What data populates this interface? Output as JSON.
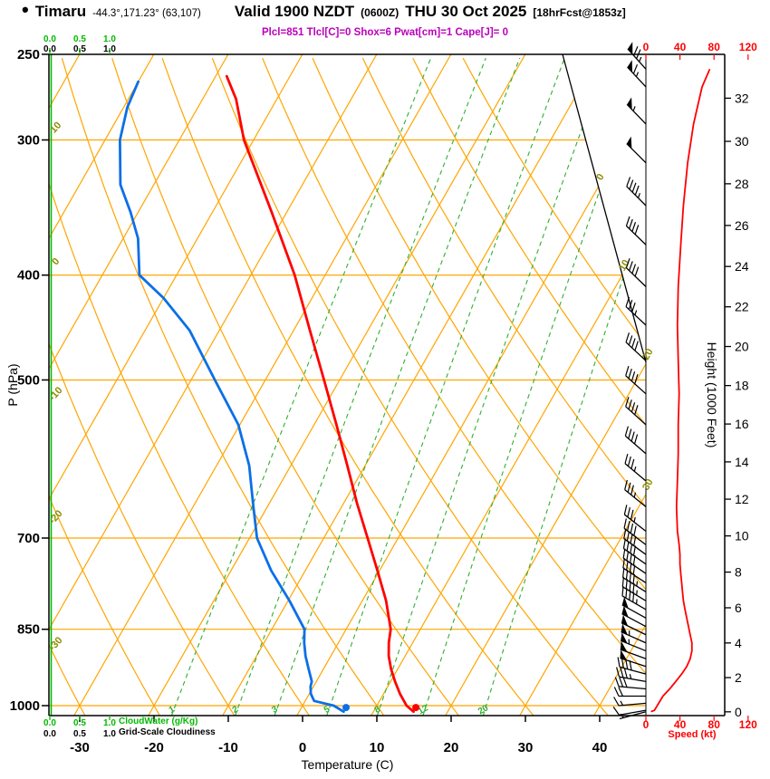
{
  "header": {
    "bullet": "•",
    "station": "Timaru",
    "coords": "-44.3°,171.23° (63,107)",
    "valid": "Valid 1900 NZDT",
    "valid_z": "(0600Z)",
    "date": "THU 30 Oct 2025",
    "fcst": "[18hrFcst@1853z]",
    "params_line": "Plcl=851 Tlcl[C]=0 Shox=6 Pwat[cm]=1 Cape[J]= 0"
  },
  "axis_labels": {
    "pressure": "P (hPa)",
    "temperature": "Temperature (C)",
    "height": "Height (1000 Feet)",
    "speed": "Speed (kt)",
    "cloudwater": "CloudWater (g/Kg)",
    "cloudiness": "Grid-Scale Cloudiness"
  },
  "colors": {
    "grid_orange": "#FFA500",
    "mixing_green": "#2FAF2F",
    "cloudwater_green": "#00BB00",
    "temp_red": "#FF0000",
    "dewpoint_blue": "#0B6FE8",
    "params_magenta": "#BB00BB",
    "olive": "#8B8B00",
    "speed_red": "#FF0000",
    "axis_black": "#000000"
  },
  "chart_data": {
    "type": "line",
    "title": "Skew-T log-P forecast sounding for Timaru",
    "pressure_ticks_hpa": [
      250,
      300,
      400,
      500,
      700,
      850,
      1000
    ],
    "temp_ticks_c": [
      -30,
      -20,
      -10,
      0,
      10,
      20,
      30,
      40
    ],
    "height_ticks_kft": [
      0,
      2,
      4,
      6,
      8,
      10,
      12,
      14,
      16,
      18,
      20,
      22,
      24,
      26,
      28,
      30,
      32
    ],
    "speed_ticks_kt": [
      0,
      40,
      80,
      120
    ],
    "cloud_scale_ticks": [
      "0.0",
      "0.5",
      "1.0"
    ],
    "isotherm_step_c": 10,
    "dry_adiabat_labels_c": [
      10,
      0,
      -10,
      -20,
      -30
    ],
    "isotherm_exit_labels_c": [
      0,
      10,
      20,
      30
    ],
    "mixing_ratio_lines_gkg": [
      1,
      2,
      3,
      5,
      8,
      12,
      20
    ],
    "temperature_profile": {
      "pressure_hpa": [
        1013,
        1000,
        975,
        950,
        925,
        900,
        875,
        850,
        800,
        750,
        700,
        650,
        600,
        550,
        500,
        450,
        400,
        350,
        300,
        275,
        262
      ],
      "temp_c": [
        15.4,
        14.0,
        12.2,
        10.6,
        9.1,
        7.8,
        6.8,
        6.0,
        3.2,
        -0.3,
        -4.1,
        -8.2,
        -12.4,
        -17.0,
        -22.1,
        -27.8,
        -34.1,
        -42.0,
        -51.3,
        -55.5,
        -58.5
      ]
    },
    "dewpoint_profile": {
      "pressure_hpa": [
        1013,
        1000,
        990,
        975,
        960,
        950,
        925,
        900,
        875,
        850,
        800,
        750,
        700,
        650,
        600,
        550,
        500,
        450,
        420,
        400,
        370,
        350,
        330,
        300,
        280,
        265
      ],
      "temp_c": [
        6.0,
        4.2,
        1.2,
        0.2,
        -0.4,
        -0.6,
        -2.0,
        -3.4,
        -4.6,
        -5.6,
        -9.8,
        -14.6,
        -19.0,
        -22.2,
        -25.6,
        -30.2,
        -36.8,
        -44.0,
        -50.0,
        -55.0,
        -58.0,
        -61.0,
        -64.5,
        -68.0,
        -69.5,
        -70.0
      ]
    },
    "wind_profile": {
      "pressure_hpa": [
        1013,
        1010,
        995,
        980,
        965,
        950,
        935,
        920,
        905,
        890,
        875,
        860,
        845,
        830,
        815,
        800,
        785,
        770,
        755,
        740,
        725,
        710,
        690,
        655,
        620,
        585,
        550,
        515,
        480,
        445,
        410,
        375,
        345,
        315,
        290,
        268,
        258
      ],
      "speed_kt": [
        6,
        10,
        15,
        20,
        28,
        35,
        42,
        48,
        52,
        54,
        54,
        52,
        50,
        48,
        46,
        44,
        43,
        42,
        41,
        40,
        40,
        39,
        37,
        36,
        37,
        38,
        38,
        39,
        38,
        37,
        38,
        41,
        44,
        49,
        56,
        66,
        75
      ],
      "dir_deg": [
        255,
        260,
        265,
        270,
        275,
        280,
        285,
        288,
        290,
        292,
        294,
        296,
        298,
        299,
        300,
        301,
        302,
        303,
        304,
        305,
        306,
        307,
        308,
        309,
        310,
        311,
        312,
        312,
        313,
        313,
        314,
        314,
        315,
        315,
        316,
        317,
        318
      ]
    },
    "surface_dots": {
      "temp_c": 15.4,
      "dewpoint_c": 6.0
    },
    "indices": {
      "plcl_hpa": 851,
      "tlcl_c": 0,
      "showalter": 6,
      "pwat_cm": 1,
      "cape_j": 0
    },
    "cloudwater_profile_gkg": 0.0,
    "cloudiness_profile": 0.0,
    "axis_ranges": {
      "pressure_hpa": [
        250,
        1021
      ],
      "speed_kt": [
        0,
        120
      ],
      "cloud_scale": [
        0.0,
        1.0
      ]
    }
  }
}
